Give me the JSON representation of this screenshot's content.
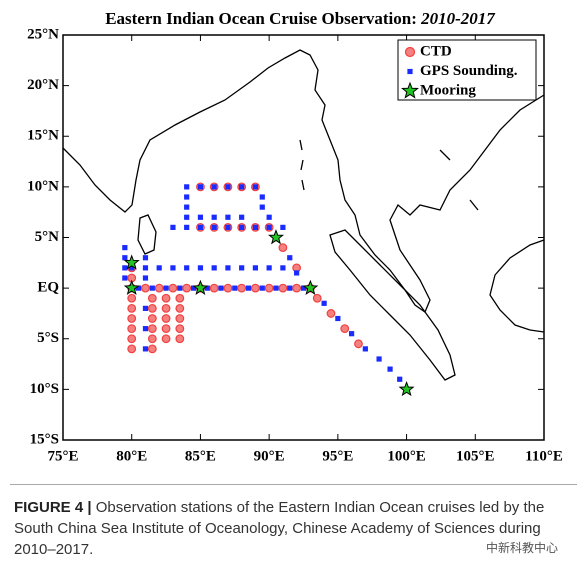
{
  "chart_data": {
    "type": "scatter",
    "title": "Eastern Indian Ocean Cruise Observation:",
    "title_period": "2010-2017",
    "xlim": [
      75,
      110
    ],
    "ylim": [
      -15,
      25
    ],
    "xticks": [
      {
        "value": 75,
        "label": "75°E"
      },
      {
        "value": 80,
        "label": "80°E"
      },
      {
        "value": 85,
        "label": "85°E"
      },
      {
        "value": 90,
        "label": "90°E"
      },
      {
        "value": 95,
        "label": "95°E"
      },
      {
        "value": 100,
        "label": "100°E"
      },
      {
        "value": 105,
        "label": "105°E"
      },
      {
        "value": 110,
        "label": "110°E"
      }
    ],
    "yticks": [
      {
        "value": -15,
        "label": "15°S"
      },
      {
        "value": -10,
        "label": "10°S"
      },
      {
        "value": -5,
        "label": "5°S"
      },
      {
        "value": 0,
        "label": "EQ"
      },
      {
        "value": 5,
        "label": "5°N"
      },
      {
        "value": 10,
        "label": "10°N"
      },
      {
        "value": 15,
        "label": "15°N"
      },
      {
        "value": 20,
        "label": "20°N"
      },
      {
        "value": 25,
        "label": "25°N"
      }
    ],
    "grid": false,
    "legend": "upper right",
    "series": [
      {
        "name": "CTD",
        "color": "#f04040",
        "marker": "circle",
        "x": [
          80,
          81,
          82,
          83,
          84,
          85,
          86,
          87,
          88,
          89,
          90,
          91,
          92,
          93,
          80,
          80,
          80,
          80,
          80,
          80,
          80,
          80,
          81.5,
          81.5,
          81.5,
          81.5,
          81.5,
          81.5,
          82.5,
          82.5,
          82.5,
          82.5,
          82.5,
          83.5,
          83.5,
          83.5,
          83.5,
          83.5,
          85,
          86,
          87,
          88,
          89,
          85,
          86,
          87,
          88,
          89,
          90,
          91,
          92,
          93.5,
          94.5,
          95.5,
          96.5
        ],
        "y": [
          0,
          0,
          0,
          0,
          0,
          0,
          0,
          0,
          0,
          0,
          0,
          0,
          0,
          0,
          2,
          1,
          -1,
          -2,
          -3,
          -4,
          -5,
          -6,
          -1,
          -2,
          -3,
          -4,
          -5,
          -6,
          -1,
          -2,
          -3,
          -4,
          -5,
          -1,
          -2,
          -3,
          -4,
          -5,
          10,
          10,
          10,
          10,
          10,
          6,
          6,
          6,
          6,
          6,
          6,
          4,
          2,
          -1,
          -2.5,
          -4,
          -5.5
        ]
      },
      {
        "name": "GPS Sounding.",
        "color": "#1a2bff",
        "marker": "square",
        "x": [
          84,
          85,
          86,
          87,
          88,
          89,
          84,
          84,
          84,
          85,
          86,
          87,
          88,
          83,
          84,
          85,
          86,
          87,
          88,
          89,
          90,
          91,
          89.5,
          89.5,
          90,
          80,
          81,
          82,
          83,
          84,
          85,
          86,
          87,
          88,
          89,
          90,
          91,
          80.5,
          81.5,
          82.5,
          83.5,
          84.5,
          85.5,
          86.5,
          87.5,
          88.5,
          89.5,
          90.5,
          91.5,
          92.5,
          79.5,
          79.5,
          79.5,
          79.5,
          91.5,
          92,
          94,
          95,
          96,
          97,
          98,
          98.8,
          99.5,
          81,
          81,
          81,
          81,
          81
        ],
        "y": [
          10,
          10,
          10,
          10,
          10,
          10,
          9,
          8,
          7,
          7,
          7,
          7,
          7,
          6,
          6,
          6,
          6,
          6,
          6,
          6,
          6,
          6,
          9,
          8,
          7,
          2,
          2,
          2,
          2,
          2,
          2,
          2,
          2,
          2,
          2,
          2,
          2,
          0,
          0,
          0,
          0,
          0,
          0,
          0,
          0,
          0,
          0,
          0,
          0,
          0,
          4,
          3,
          2,
          1,
          3,
          1.5,
          -1.5,
          -3,
          -4.5,
          -6,
          -7,
          -8,
          -9,
          3,
          1,
          -2,
          -4,
          -6
        ]
      },
      {
        "name": "Mooring",
        "color": "#22c422",
        "marker": "star",
        "x": [
          80,
          80,
          85,
          90.5,
          93,
          100
        ],
        "y": [
          2.5,
          0,
          0,
          5,
          0,
          -10
        ]
      }
    ]
  },
  "caption_label": "FIGURE 4 |",
  "caption": "Observation stations of the Eastern Indian Ocean cruises led by the South China Sea Institute of Oceanology, Chinese Academy of Sciences during 2010–2017.",
  "watermark": "中新科教中心"
}
